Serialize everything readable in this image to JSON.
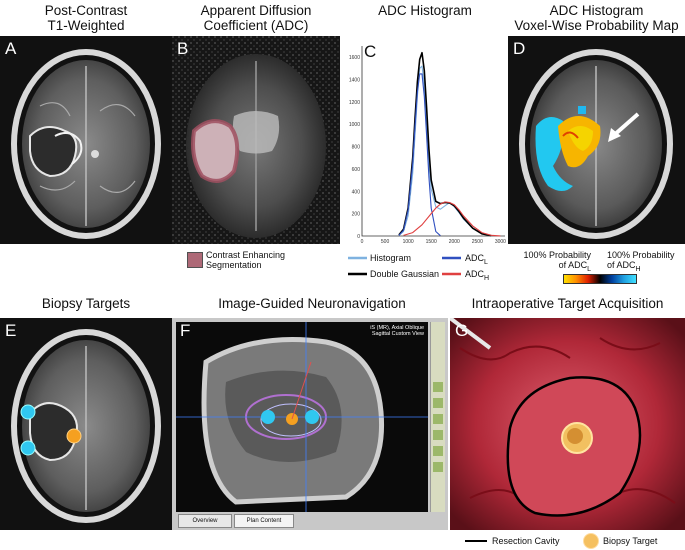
{
  "titles": {
    "a": "Post-Contrast\nT1-Weighted",
    "b": "Apparent Diffusion\nCoefficient (ADC)",
    "c": "ADC Histogram",
    "d": "ADC Histogram\nVoxel-Wise Probability Map",
    "e": "Biopsy Targets",
    "f": "Image-Guided Neuronavigation",
    "g": "Intraoperative Target Acquisition"
  },
  "panel_letters": {
    "a": "A",
    "b": "B",
    "c": "C",
    "d": "D",
    "e": "E",
    "f": "F",
    "g": "G"
  },
  "legend_b": {
    "label": "Contrast Enhancing\nSegmentation",
    "color": "#a05060"
  },
  "legend_c": {
    "histogram": "Histogram",
    "double_gaussian": "Double Gaussian",
    "adc_l": "ADC",
    "adc_l_sub": "L",
    "adc_h": "ADC",
    "adc_h_sub": "H",
    "colors": {
      "histogram": "#7fb2e0",
      "double_gaussian": "#000000",
      "adc_l": "#3050c0",
      "adc_h": "#e04040"
    }
  },
  "legend_d": {
    "left": "100% Probability\nof ADC",
    "left_sub": "L",
    "right": "100% Probability\nof ADC",
    "right_sub": "H"
  },
  "legend_g": {
    "resection": "Resection Cavity",
    "biopsy": "Biopsy Target"
  },
  "panel_f_ui": {
    "header": "iS (MR), Axial Oblique\nSagittal Custom View",
    "tab1": "Overview",
    "tab2": "Plan Content"
  },
  "chart_data": {
    "type": "line",
    "title": "ADC Histogram",
    "x_ticks": [
      0,
      500,
      1000,
      1500,
      2000,
      2500,
      3000
    ],
    "y_ticks": [
      0,
      200,
      400,
      600,
      800,
      1000,
      1200,
      1400,
      1600
    ],
    "xlim": [
      0,
      3100
    ],
    "ylim": [
      0,
      1700
    ],
    "series": [
      {
        "name": "Histogram",
        "color": "#7fb2e0",
        "x": [
          800,
          900,
          1000,
          1100,
          1150,
          1200,
          1250,
          1300,
          1350,
          1400,
          1450,
          1500,
          1600,
          1700,
          1800,
          1900,
          2000,
          2100,
          2200,
          2400,
          2600,
          2800
        ],
        "values": [
          5,
          40,
          180,
          560,
          900,
          1250,
          1500,
          1520,
          1350,
          1000,
          650,
          420,
          260,
          240,
          270,
          300,
          260,
          210,
          150,
          70,
          25,
          5
        ]
      },
      {
        "name": "Double Gaussian",
        "color": "#000000",
        "x": [
          800,
          900,
          1000,
          1100,
          1150,
          1200,
          1250,
          1300,
          1350,
          1400,
          1450,
          1500,
          1600,
          1700,
          1800,
          1900,
          2000,
          2100,
          2200,
          2400,
          2600,
          2800
        ],
        "values": [
          10,
          60,
          250,
          700,
          1050,
          1380,
          1580,
          1640,
          1480,
          1150,
          780,
          500,
          310,
          290,
          300,
          295,
          270,
          220,
          160,
          70,
          20,
          4
        ]
      },
      {
        "name": "ADCL",
        "color": "#3050c0",
        "x": [
          800,
          900,
          1000,
          1100,
          1150,
          1200,
          1250,
          1300,
          1350,
          1400,
          1450,
          1500,
          1600,
          1700
        ],
        "values": [
          5,
          50,
          230,
          650,
          980,
          1290,
          1450,
          1450,
          1250,
          900,
          530,
          250,
          40,
          3
        ]
      },
      {
        "name": "ADCH",
        "color": "#e04040",
        "x": [
          900,
          1100,
          1300,
          1500,
          1600,
          1700,
          1800,
          1900,
          2000,
          2100,
          2200,
          2400,
          2600,
          2800,
          3000
        ],
        "values": [
          5,
          30,
          100,
          200,
          250,
          285,
          305,
          300,
          280,
          235,
          180,
          90,
          30,
          6,
          1
        ]
      }
    ]
  }
}
